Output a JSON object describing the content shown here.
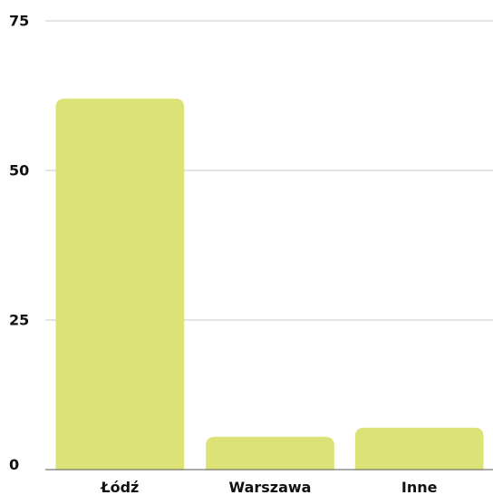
{
  "chart_data": {
    "type": "bar",
    "categories": [
      "Łódź",
      "Warszawa",
      "Inne"
    ],
    "values": [
      62,
      5.5,
      7
    ],
    "ylim": [
      0,
      75
    ],
    "yticks": [
      0,
      25,
      50,
      75
    ],
    "grid": true,
    "colors": {
      "bar": "#dce275",
      "grid": "#c8c8c8",
      "axis": "#555555",
      "text": "#111111"
    }
  }
}
